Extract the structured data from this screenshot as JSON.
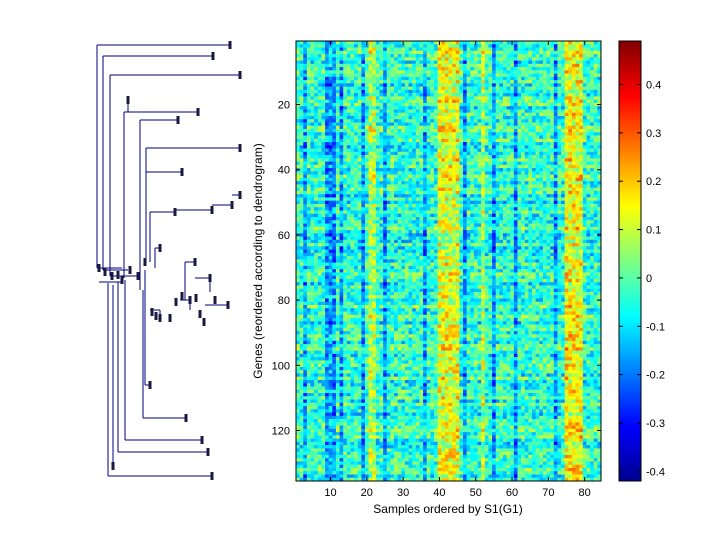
{
  "chart_data": {
    "type": "heatmap",
    "title": "",
    "xlabel": "Samples ordered by S1(G1)",
    "ylabel": "Genes (reordered according to dendrogram)",
    "n_rows": 135,
    "n_cols": 84,
    "xlim": [
      0.5,
      84.5
    ],
    "ylim": [
      0.5,
      135.5
    ],
    "xticks": [
      10,
      20,
      30,
      40,
      50,
      60,
      70,
      80
    ],
    "yticks": [
      20,
      40,
      60,
      80,
      100,
      120
    ],
    "colormap": "jet",
    "colorbar": {
      "range": [
        -0.42,
        0.49
      ],
      "ticks": [
        -0.4,
        -0.3,
        -0.2,
        -0.1,
        0,
        0.1,
        0.2,
        0.3,
        0.4
      ],
      "tick_labels": [
        "-0.4",
        "-0.3",
        "-0.2",
        "-0.1",
        "0",
        "0.1",
        "0.2",
        "0.3",
        "0.4"
      ]
    },
    "column_profile": {
      "hot_columns": [
        21,
        22,
        40,
        41,
        42,
        43,
        44,
        45,
        52,
        75,
        76,
        77,
        78,
        79
      ],
      "cold_columns": [
        3,
        9,
        10,
        11,
        13,
        19,
        25,
        36,
        47,
        55,
        61,
        72
      ],
      "cells_estimated": true
    },
    "dendrogram": {
      "orientation": "left",
      "leaves": 135
    }
  },
  "colors": {
    "dendrogram_line": "#000080",
    "leaf_marker": "#1a1a40",
    "axis": "#000000",
    "background": "#ffffff"
  }
}
